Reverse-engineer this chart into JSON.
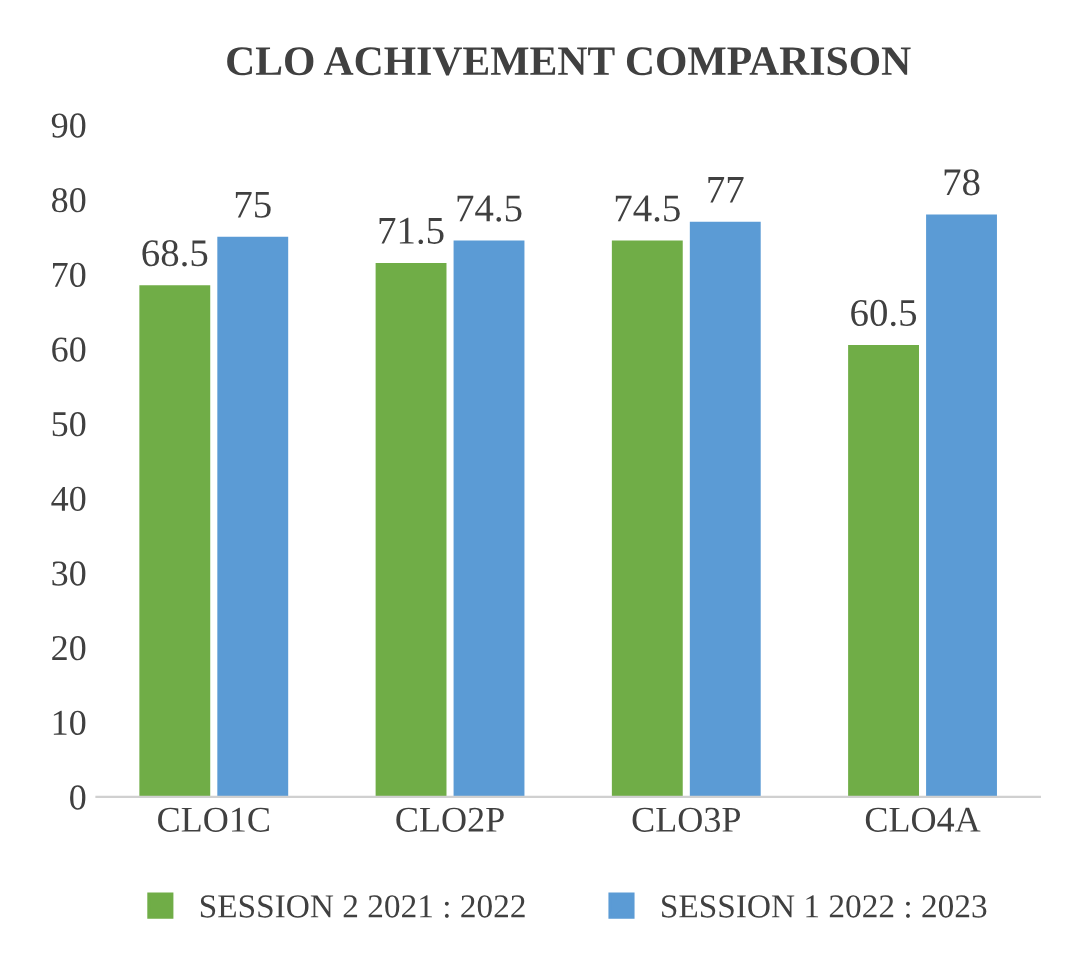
{
  "chart_data": {
    "type": "bar",
    "title": "CLO ACHIVEMENT COMPARISON",
    "categories": [
      "CLO1C",
      "CLO2P",
      "CLO3P",
      "CLO4A"
    ],
    "series": [
      {
        "name": "SESSION 2 2021 : 2022",
        "color": "#70ad47",
        "values": [
          68.5,
          71.5,
          74.5,
          60.5
        ]
      },
      {
        "name": "SESSION 1 2022 : 2023",
        "color": "#5b9bd5",
        "values": [
          75,
          74.5,
          77,
          78
        ]
      }
    ],
    "ylim": [
      0,
      90
    ],
    "yticks": [
      0,
      10,
      20,
      30,
      40,
      50,
      60,
      70,
      80,
      90
    ],
    "grid": false,
    "legend": "bottom",
    "data_labels": true
  }
}
